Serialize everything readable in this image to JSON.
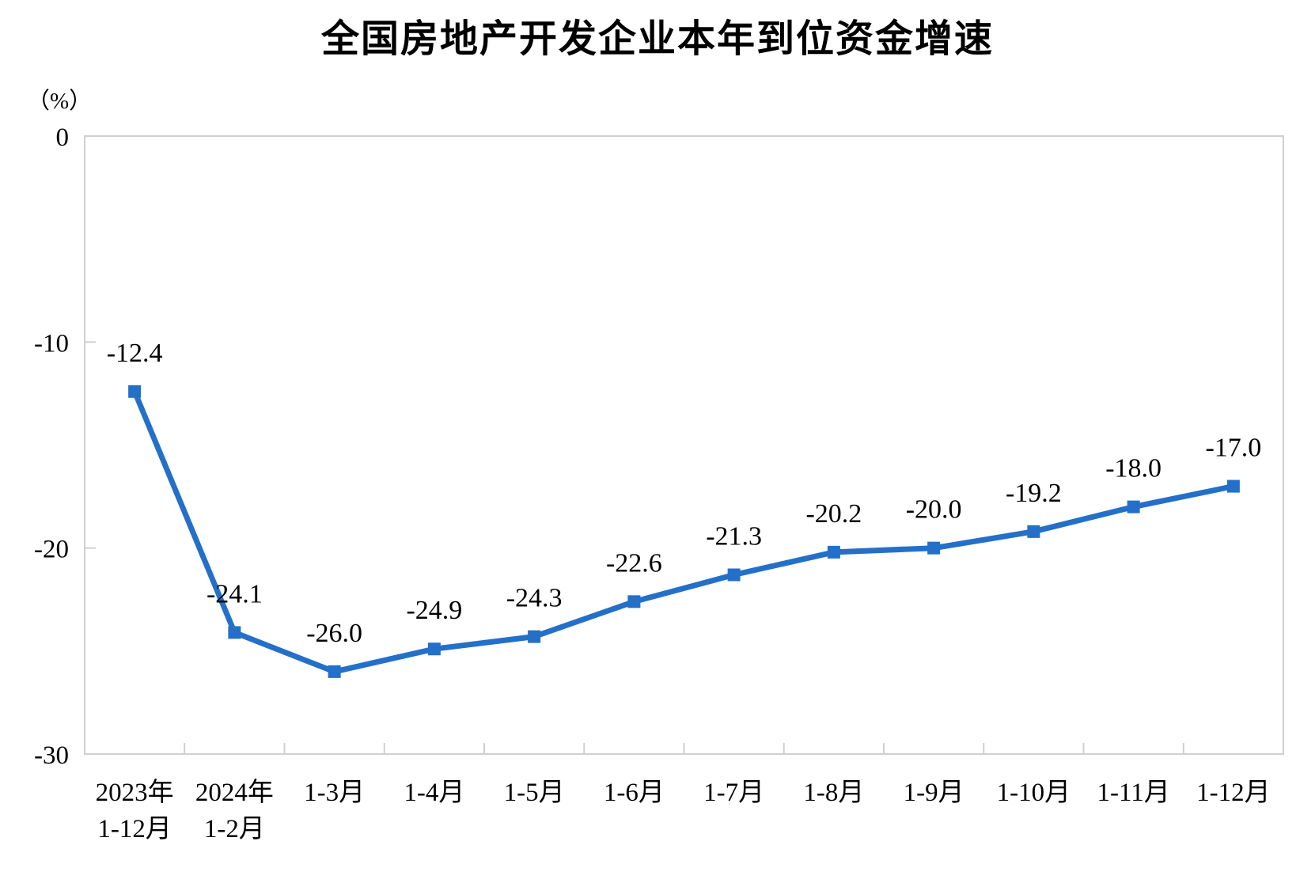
{
  "chart_data": {
    "type": "line",
    "title": "全国房地产开发企业本年到位资金增速",
    "unit_label": "（%）",
    "categories": [
      "2023年\n1-12月",
      "2024年\n1-2月",
      "1-3月",
      "1-4月",
      "1-5月",
      "1-6月",
      "1-7月",
      "1-8月",
      "1-9月",
      "1-10月",
      "1-11月",
      "1-12月"
    ],
    "values": [
      -12.4,
      -24.1,
      -26.0,
      -24.9,
      -24.3,
      -22.6,
      -21.3,
      -20.2,
      -20.0,
      -19.2,
      -18.0,
      -17.0
    ],
    "data_labels": [
      "-12.4",
      "-24.1",
      "-26.0",
      "-24.9",
      "-24.3",
      "-22.6",
      "-21.3",
      "-20.2",
      "-20.0",
      "-19.2",
      "-18.0",
      "-17.0"
    ],
    "ylim": [
      -30,
      0
    ],
    "yticks": [
      0,
      -10,
      -20,
      -30
    ],
    "ytick_labels": [
      "0",
      "-10",
      "-20",
      "-30"
    ],
    "grid": false,
    "legend": "none",
    "line_color": "#2470C8",
    "marker_shape": "square",
    "axis_color": "#D0D0D0",
    "text_color": "#000000"
  }
}
